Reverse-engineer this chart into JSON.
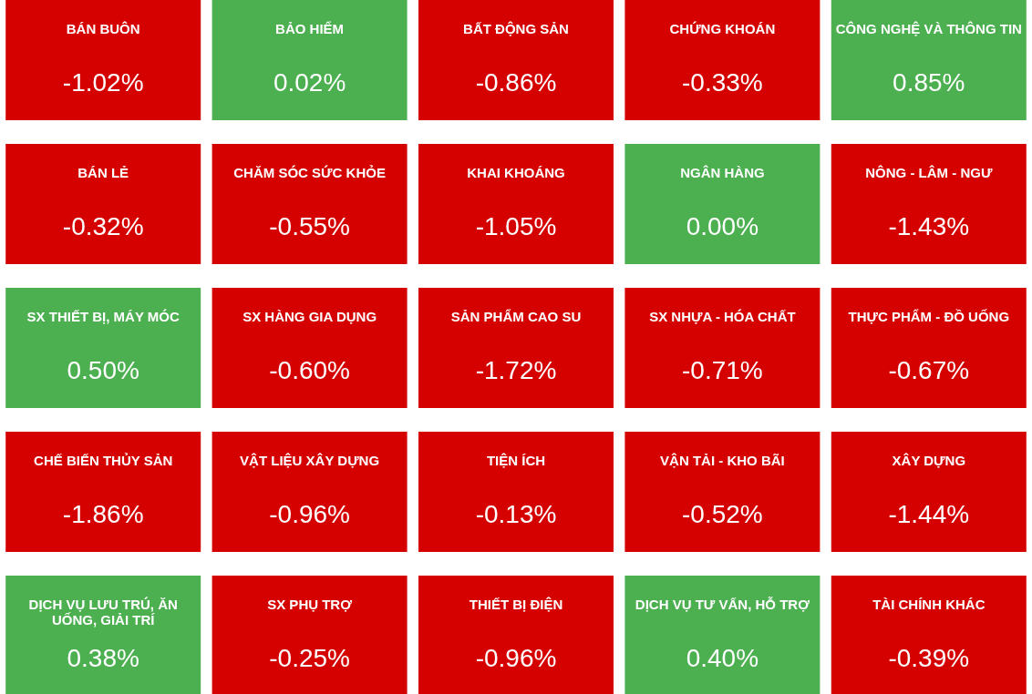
{
  "chart_data": {
    "type": "other",
    "categories": [
      "BÁN BUÔN",
      "BẢO HIỂM",
      "BẤT ĐỘNG SẢN",
      "CHỨNG KHOÁN",
      "CÔNG NGHỆ VÀ THÔNG TIN",
      "BÁN LẺ",
      "CHĂM SÓC SỨC KHỎE",
      "KHAI KHOÁNG",
      "NGÂN HÀNG",
      "NÔNG - LÂM - NGƯ",
      "SX THIẾT BỊ, MÁY MÓC",
      "SX HÀNG GIA DỤNG",
      "SẢN PHẨM CAO SU",
      "SX NHỰA - HÓA CHẤT",
      "THỰC PHẨM - ĐỒ UỐNG",
      "CHẾ BIẾN THỦY SẢN",
      "VẬT LIỆU XÂY DỰNG",
      "TIỆN ÍCH",
      "VẬN TẢI - KHO BÃI",
      "XÂY DỰNG",
      "DỊCH VỤ LƯU TRÚ, ĂN UỐNG, GIẢI TRÍ",
      "SX PHỤ TRỢ",
      "THIẾT BỊ ĐIỆN",
      "DỊCH VỤ TƯ VẤN, HỖ TRỢ",
      "TÀI CHÍNH KHÁC"
    ],
    "values": [
      -1.02,
      0.02,
      -0.86,
      -0.33,
      0.85,
      -0.32,
      -0.55,
      -1.05,
      0.0,
      -1.43,
      0.5,
      -0.6,
      -1.72,
      -0.71,
      -0.67,
      -1.86,
      -0.96,
      -0.13,
      -0.52,
      -1.44,
      0.38,
      -0.25,
      -0.96,
      0.4,
      -0.39
    ],
    "value_labels": [
      "-1.02%",
      "0.02%",
      "-0.86%",
      "-0.33%",
      "0.85%",
      "-0.32%",
      "-0.55%",
      "-1.05%",
      "0.00%",
      "-1.43%",
      "0.50%",
      "-0.60%",
      "-1.72%",
      "-0.71%",
      "-0.67%",
      "-1.86%",
      "-0.96%",
      "-0.13%",
      "-0.52%",
      "-1.44%",
      "0.38%",
      "-0.25%",
      "-0.96%",
      "0.40%",
      "-0.39%"
    ],
    "colors": [
      "#d50000",
      "#4caf50",
      "#d50000",
      "#d50000",
      "#4caf50",
      "#d50000",
      "#d50000",
      "#d50000",
      "#4caf50",
      "#d50000",
      "#4caf50",
      "#d50000",
      "#d50000",
      "#d50000",
      "#d50000",
      "#d50000",
      "#d50000",
      "#d50000",
      "#d50000",
      "#d50000",
      "#4caf50",
      "#d50000",
      "#d50000",
      "#4caf50",
      "#d50000"
    ]
  }
}
